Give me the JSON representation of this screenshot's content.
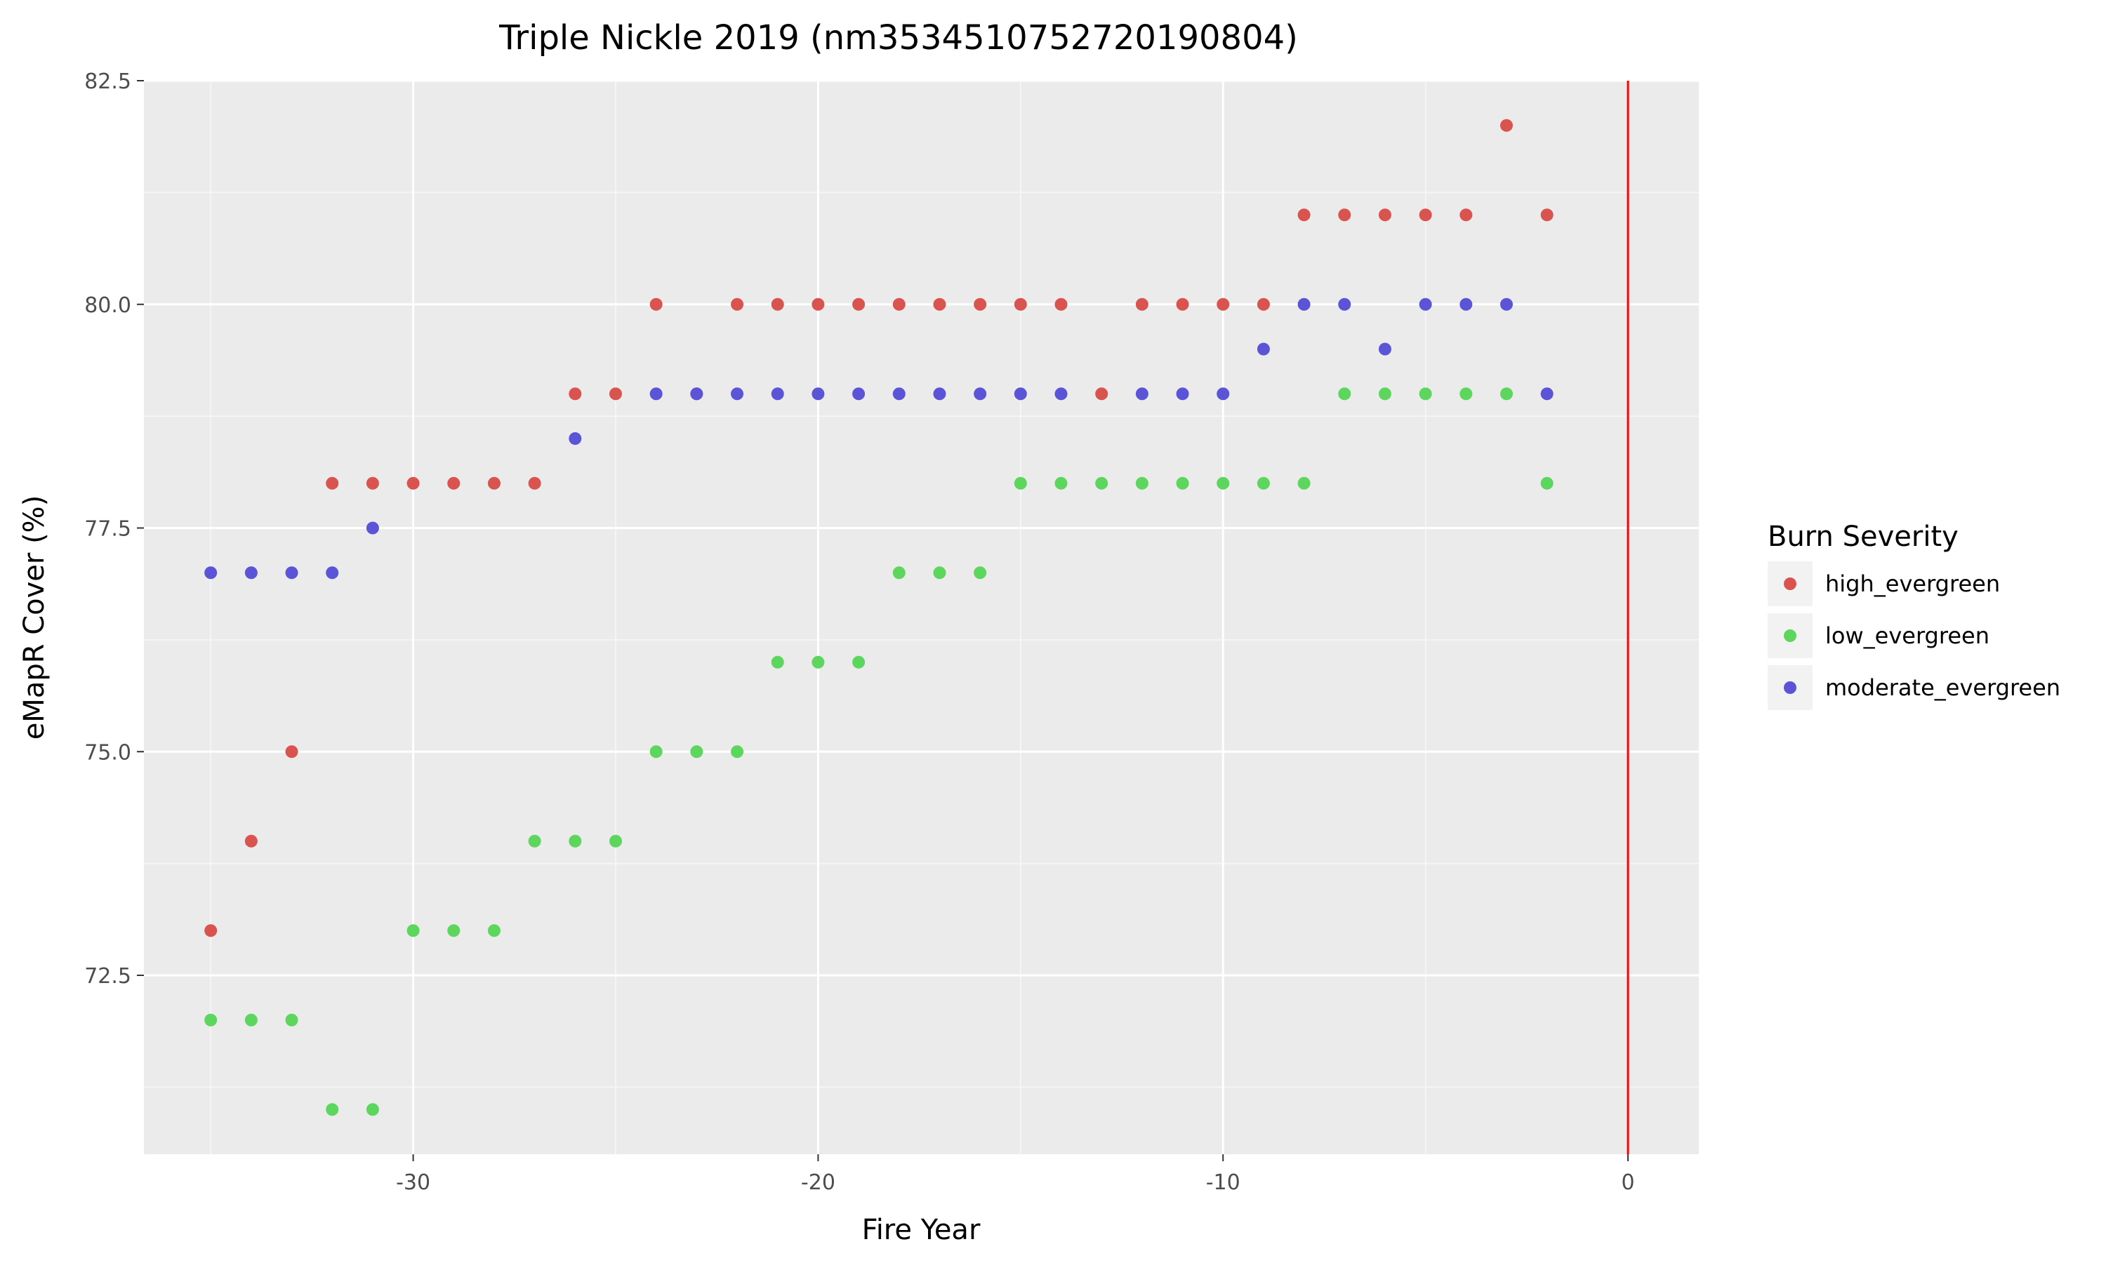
{
  "chart_data": {
    "type": "scatter",
    "title": "Triple Nickle 2019 (nm3534510752720190804)",
    "xlabel": "Fire Year",
    "ylabel": "eMapR Cover (%)",
    "xlim": [
      -36.65,
      1.75
    ],
    "ylim": [
      70.5,
      82.5
    ],
    "x_ticks": [
      -30,
      -20,
      -10,
      0
    ],
    "x_tick_labels": [
      "-30",
      "-20",
      "-10",
      "0"
    ],
    "y_ticks": [
      72.5,
      75.0,
      77.5,
      80.0,
      82.5
    ],
    "y_tick_labels": [
      "72.5",
      "75.0",
      "77.5",
      "80.0",
      "82.5"
    ],
    "grid": true,
    "reference_line": {
      "x": 0,
      "color": "#ff0000"
    },
    "legend": {
      "title": "Burn Severity",
      "placement": "right"
    },
    "series": [
      {
        "name": "high_evergreen",
        "color": "#d9534f",
        "points": [
          [
            -35,
            73
          ],
          [
            -34,
            74
          ],
          [
            -33,
            75
          ],
          [
            -32,
            78
          ],
          [
            -31,
            78
          ],
          [
            -30,
            78
          ],
          [
            -29,
            78
          ],
          [
            -28,
            78
          ],
          [
            -27,
            78
          ],
          [
            -26,
            79
          ],
          [
            -25,
            79
          ],
          [
            -24,
            80
          ],
          [
            -23,
            79
          ],
          [
            -22,
            80
          ],
          [
            -21,
            80
          ],
          [
            -20,
            80
          ],
          [
            -19,
            80
          ],
          [
            -18,
            80
          ],
          [
            -17,
            80
          ],
          [
            -16,
            80
          ],
          [
            -15,
            80
          ],
          [
            -14,
            80
          ],
          [
            -13,
            79
          ],
          [
            -12,
            80
          ],
          [
            -11,
            80
          ],
          [
            -10,
            80
          ],
          [
            -9,
            80
          ],
          [
            -8,
            81
          ],
          [
            -7,
            81
          ],
          [
            -6,
            81
          ],
          [
            -5,
            81
          ],
          [
            -4,
            81
          ],
          [
            -3,
            82
          ],
          [
            -2,
            81
          ]
        ]
      },
      {
        "name": "low_evergreen",
        "color": "#5cd65c",
        "points": [
          [
            -35,
            72
          ],
          [
            -34,
            72
          ],
          [
            -33,
            72
          ],
          [
            -32,
            71
          ],
          [
            -31,
            71
          ],
          [
            -30,
            73
          ],
          [
            -29,
            73
          ],
          [
            -28,
            73
          ],
          [
            -27,
            74
          ],
          [
            -26,
            74
          ],
          [
            -25,
            74
          ],
          [
            -24,
            75
          ],
          [
            -23,
            75
          ],
          [
            -22,
            75
          ],
          [
            -21,
            76
          ],
          [
            -20,
            76
          ],
          [
            -19,
            76
          ],
          [
            -18,
            77
          ],
          [
            -17,
            77
          ],
          [
            -16,
            77
          ],
          [
            -15,
            78
          ],
          [
            -14,
            78
          ],
          [
            -13,
            78
          ],
          [
            -12,
            78
          ],
          [
            -11,
            78
          ],
          [
            -10,
            78
          ],
          [
            -9,
            78
          ],
          [
            -8,
            78
          ],
          [
            -7,
            79
          ],
          [
            -6,
            79
          ],
          [
            -5,
            79
          ],
          [
            -4,
            79
          ],
          [
            -3,
            79
          ],
          [
            -2,
            78
          ]
        ]
      },
      {
        "name": "moderate_evergreen",
        "color": "#5b54d6",
        "points": [
          [
            -35,
            77
          ],
          [
            -34,
            77
          ],
          [
            -33,
            77
          ],
          [
            -32,
            77
          ],
          [
            -31,
            77.5
          ],
          [
            -26,
            78.5
          ],
          [
            -24,
            79
          ],
          [
            -23,
            79
          ],
          [
            -22,
            79
          ],
          [
            -21,
            79
          ],
          [
            -20,
            79
          ],
          [
            -19,
            79
          ],
          [
            -18,
            79
          ],
          [
            -17,
            79
          ],
          [
            -16,
            79
          ],
          [
            -15,
            79
          ],
          [
            -14,
            79
          ],
          [
            -12,
            79
          ],
          [
            -11,
            79
          ],
          [
            -10,
            79
          ],
          [
            -9,
            79.5
          ],
          [
            -8,
            80
          ],
          [
            -7,
            80
          ],
          [
            -6,
            79.5
          ],
          [
            -5,
            80
          ],
          [
            -4,
            80
          ],
          [
            -3,
            80
          ],
          [
            -2,
            79
          ]
        ]
      }
    ]
  }
}
